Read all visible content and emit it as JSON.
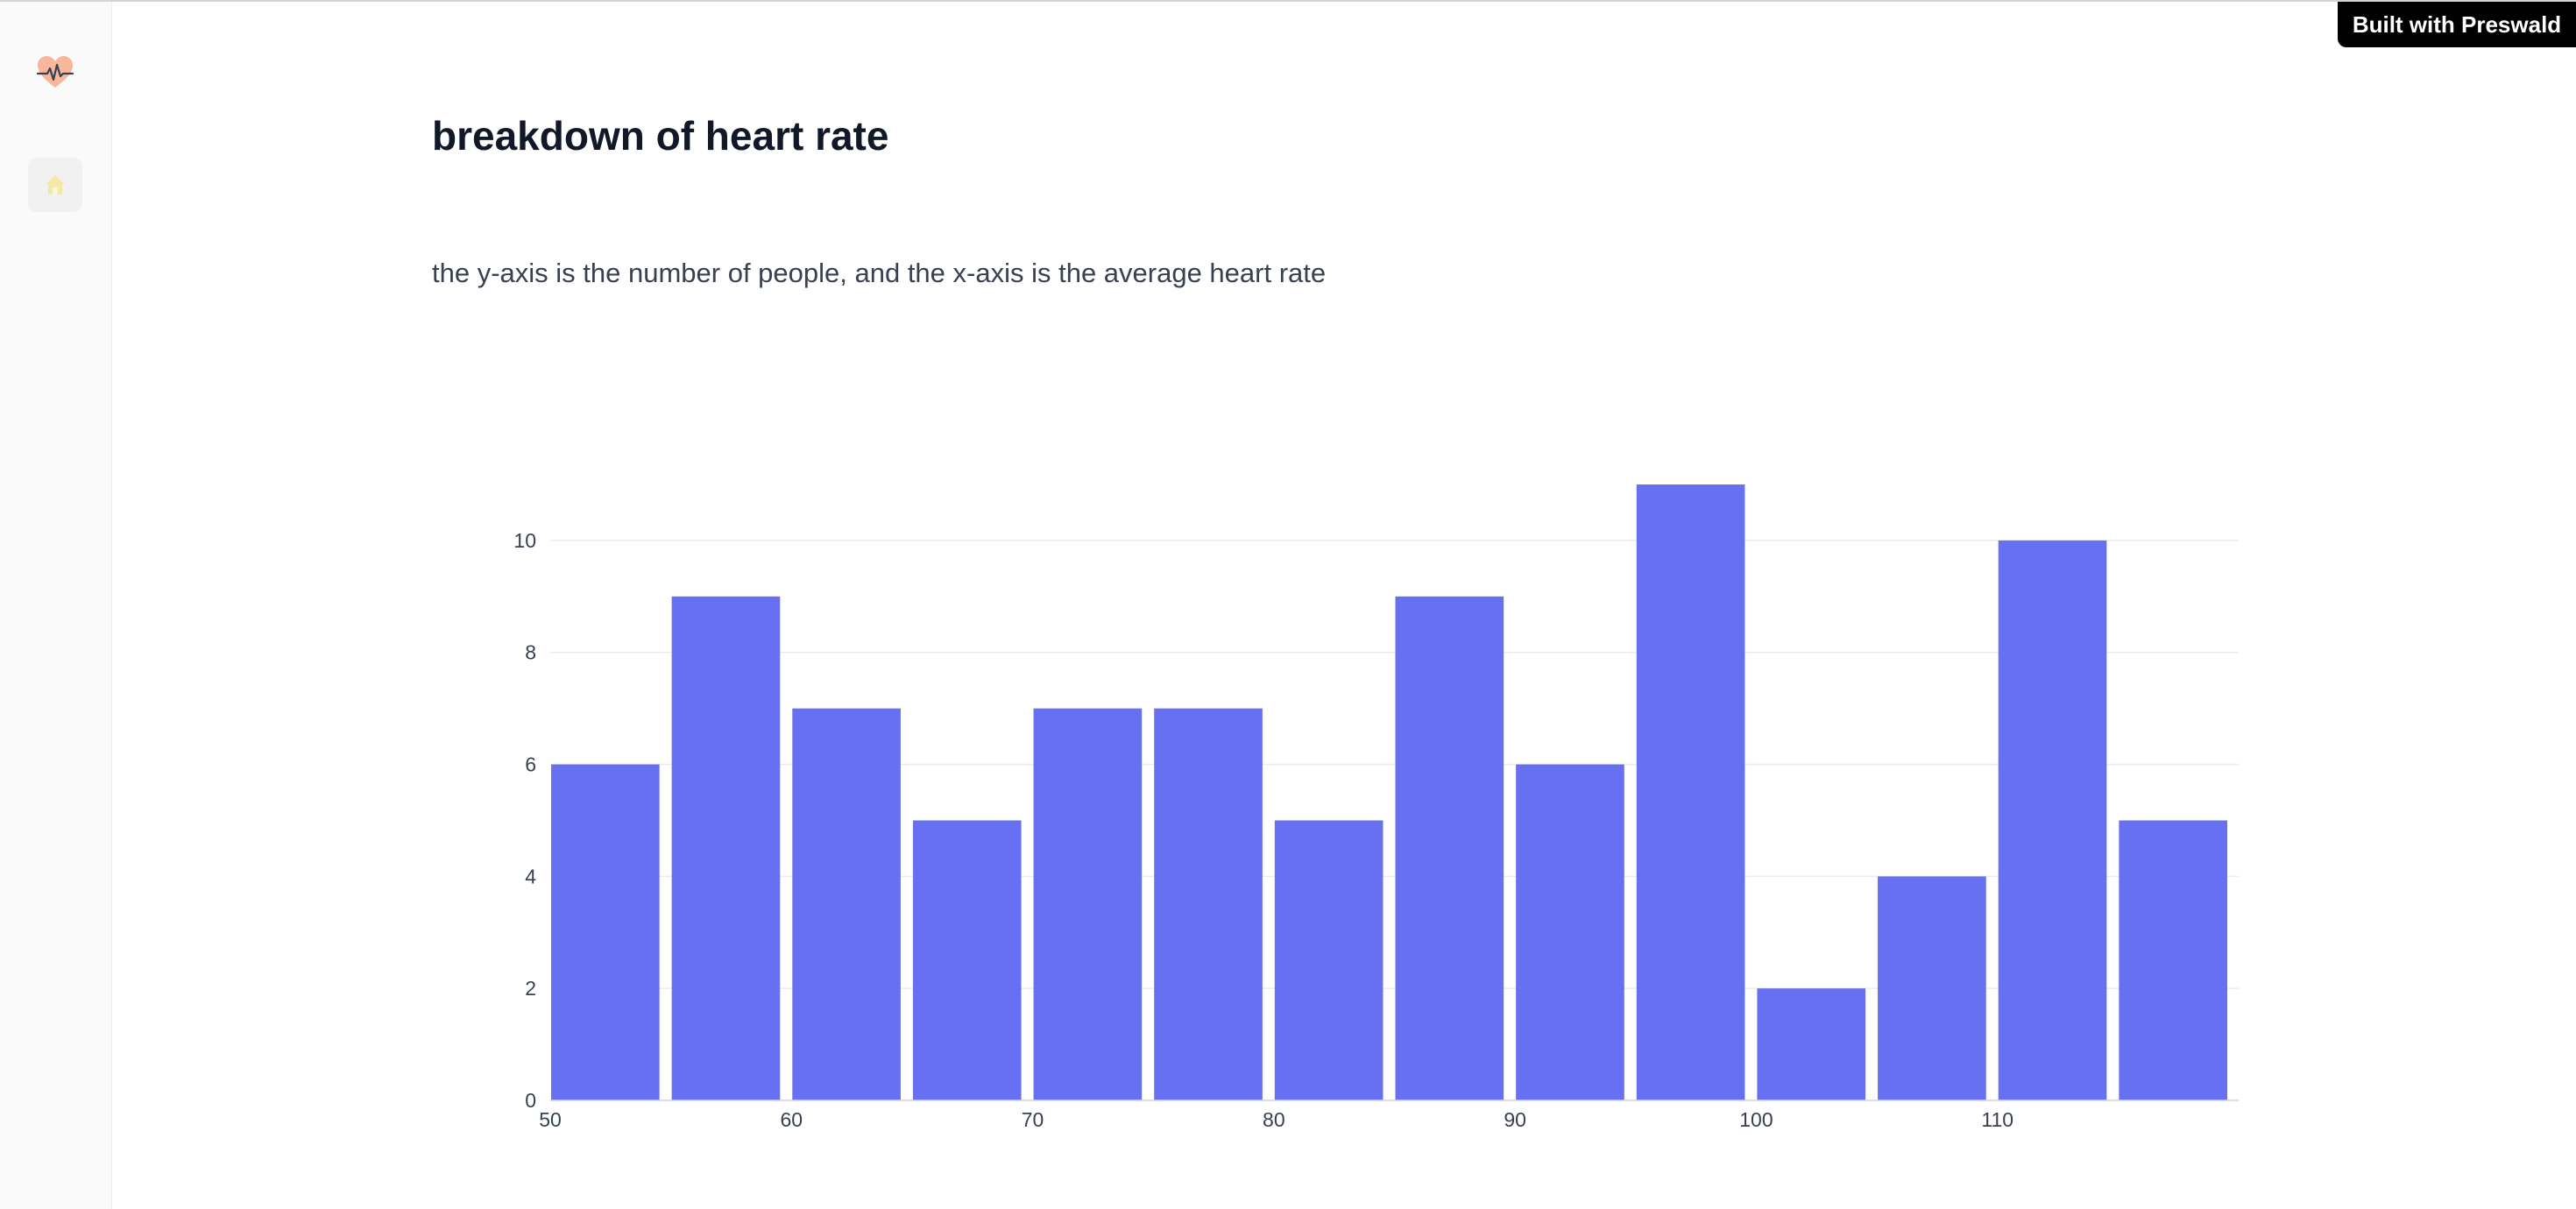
{
  "badge": {
    "label": "Built with Preswald"
  },
  "sidebar": {
    "logo_icon": "heart-pulse-icon",
    "home_icon": "home-icon"
  },
  "page": {
    "title": "breakdown of heart rate",
    "description": "the y-axis is the number of people, and the x-axis is the average heart rate"
  },
  "colors": {
    "bar": "#6770f1",
    "grid": "#ececec",
    "axis_text": "#374151"
  },
  "chart_data": {
    "type": "bar",
    "title": "",
    "xlabel": "",
    "ylabel": "",
    "bin_width": 5,
    "x": [
      50,
      55,
      60,
      65,
      70,
      75,
      80,
      85,
      90,
      95,
      100,
      105,
      110,
      115
    ],
    "values": [
      6,
      9,
      7,
      5,
      7,
      7,
      5,
      9,
      6,
      11,
      2,
      4,
      10,
      5
    ],
    "xlim": [
      50,
      120
    ],
    "ylim": [
      0,
      11
    ],
    "x_ticks": [
      50,
      60,
      70,
      80,
      90,
      100,
      110
    ],
    "y_ticks": [
      0,
      2,
      4,
      6,
      8,
      10
    ],
    "grid": true,
    "legend": "none"
  }
}
